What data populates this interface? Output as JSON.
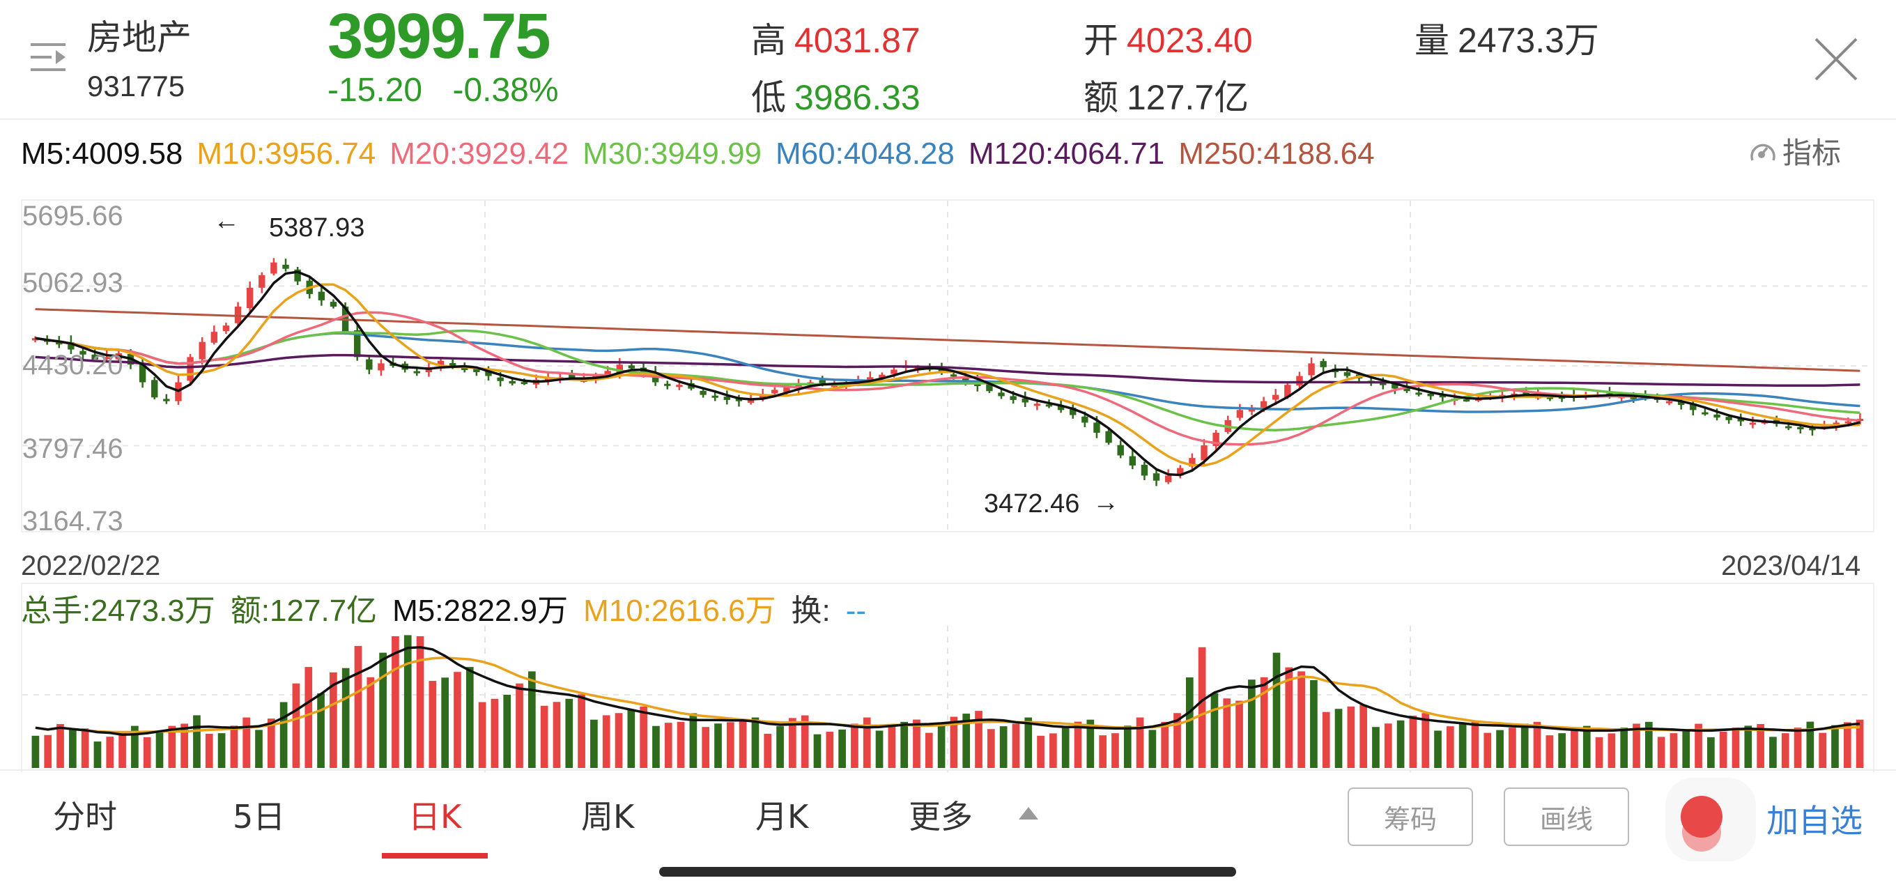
{
  "header": {
    "name": "房地产",
    "code": "931775",
    "price": "3999.75",
    "change": "-15.20",
    "change_pct": "-0.38%",
    "high_label": "高",
    "high": "4031.87",
    "low_label": "低",
    "low": "3986.33",
    "open_label": "开",
    "open": "4023.40",
    "amount_label": "额",
    "amount": "127.7亿",
    "volume_label": "量",
    "volume": "2473.3万",
    "menu_icon": "menu-expand-icon",
    "close_icon": "close-icon"
  },
  "ma": {
    "m5": "M5:4009.58",
    "m10": "M10:3956.74",
    "m20": "M20:3929.42",
    "m30": "M30:3949.99",
    "m60": "M60:4048.28",
    "m120": "M120:4064.71",
    "m250": "M250:4188.64",
    "indicator_label": "指标"
  },
  "colors": {
    "up": "#e84444",
    "down": "#2e6b1c",
    "m5": "#111111",
    "m10": "#e8a21c",
    "m20": "#ec6a7a",
    "m30": "#6cc14a",
    "m60": "#3a83bd",
    "m120": "#5a1a5e",
    "m250": "#b45540",
    "price_down": "#2e9a27",
    "price_up": "#e03232"
  },
  "chart_data": {
    "type": "candlestick",
    "title": "房地产 931775 日K",
    "x_start": "2022/02/22",
    "x_end": "2023/04/14",
    "y_ticks": [
      "5695.66",
      "5062.93",
      "4430.20",
      "3797.46",
      "3164.73"
    ],
    "ylim": [
      3164.73,
      5695.66
    ],
    "max_annotation": "5387.93",
    "min_annotation": "3472.46",
    "ma_legend": {
      "M5": 4009.58,
      "M10": 3956.74,
      "M20": 3929.42,
      "M30": 3949.99,
      "M60": 4048.28,
      "M120": 4064.71,
      "M250": 4188.64
    },
    "close_path": [
      4650,
      4620,
      4600,
      4560,
      4520,
      4480,
      4500,
      4530,
      4440,
      4300,
      4180,
      4150,
      4300,
      4500,
      4620,
      4700,
      4750,
      4900,
      5050,
      5150,
      5250,
      5200,
      5100,
      5000,
      4950,
      4900,
      4700,
      4500,
      4400,
      4450,
      4430,
      4400,
      4380,
      4420,
      4470,
      4420,
      4400,
      4380,
      4350,
      4310,
      4290,
      4300,
      4320,
      4330,
      4340,
      4330,
      4320,
      4350,
      4390,
      4440,
      4410,
      4360,
      4300,
      4280,
      4280,
      4250,
      4200,
      4180,
      4160,
      4150,
      4170,
      4200,
      4240,
      4260,
      4280,
      4300,
      4290,
      4280,
      4300,
      4320,
      4340,
      4360,
      4400,
      4430,
      4420,
      4400,
      4380,
      4350,
      4310,
      4270,
      4230,
      4190,
      4160,
      4140,
      4130,
      4110,
      4080,
      4040,
      3980,
      3900,
      3820,
      3720,
      3640,
      3560,
      3520,
      3560,
      3620,
      3700,
      3800,
      3900,
      4000,
      4080,
      4100,
      4150,
      4200,
      4280,
      4350,
      4450,
      4420,
      4380,
      4350,
      4330,
      4300,
      4280,
      4250,
      4230,
      4210,
      4190,
      4180,
      4170,
      4160,
      4170,
      4190,
      4200,
      4210,
      4200,
      4190,
      4180,
      4180,
      4190,
      4200,
      4200,
      4200,
      4190,
      4180,
      4170,
      4160,
      4150,
      4120,
      4080,
      4050,
      4020,
      4000,
      3990,
      3980,
      3990,
      3970,
      3950,
      3930,
      3920,
      3950,
      3980,
      3990,
      4010
    ],
    "volume_axis": "总手(万)",
    "volume_legend": {
      "total": "总手:2473.3万",
      "amount": "额:127.7亿",
      "m5": "M5:2822.9万",
      "m10": "M10:2616.6万",
      "turnover": "换:--"
    },
    "volume_path": [
      22,
      20,
      24,
      19,
      18,
      17,
      18,
      19,
      20,
      21,
      22,
      23,
      22,
      24,
      22,
      20,
      22,
      24,
      26,
      30,
      36,
      42,
      46,
      48,
      55,
      52,
      58,
      62,
      70,
      72,
      66,
      60,
      56,
      52,
      50,
      48,
      45,
      42,
      40,
      42,
      44,
      40,
      38,
      36,
      35,
      33,
      32,
      30,
      29,
      28,
      27,
      26,
      24,
      26,
      28,
      27,
      25,
      24,
      23,
      22,
      24,
      26,
      25,
      23,
      22,
      21,
      22,
      23,
      24,
      25,
      24,
      23,
      24,
      26,
      28,
      27,
      26,
      25,
      24,
      23,
      24,
      22,
      21,
      22,
      23,
      22,
      21,
      20,
      22,
      24,
      26,
      28,
      30,
      45,
      55,
      48,
      40,
      35,
      42,
      62,
      70,
      55,
      48,
      40,
      36,
      34,
      32,
      30,
      28,
      27,
      26,
      26,
      25,
      24,
      24,
      23,
      22,
      24,
      23,
      22,
      22,
      21,
      21,
      20,
      20,
      20,
      21,
      21,
      22,
      22,
      21,
      20,
      20,
      20,
      21,
      21,
      22,
      22,
      21,
      20,
      20,
      20,
      21,
      22,
      24,
      26,
      25,
      24
    ]
  },
  "dates": {
    "start": "2022/02/22",
    "end": "2023/04/14"
  },
  "annotations": {
    "max": "5387.93",
    "min": "3472.46",
    "left_arrow": "←",
    "right_arrow": "→"
  },
  "volume": {
    "total": "总手:2473.3万",
    "amount": "额:127.7亿",
    "m5": "M5:2822.9万",
    "m10": "M10:2616.6万",
    "turnover_label": "换:",
    "turnover_value": "--"
  },
  "footer": {
    "tabs": [
      "分时",
      "5日",
      "日K",
      "周K",
      "月K",
      "更多"
    ],
    "active_tab": "日K",
    "chips_button": "筹码",
    "draw_button": "画线",
    "add_favorite": "加自选"
  }
}
